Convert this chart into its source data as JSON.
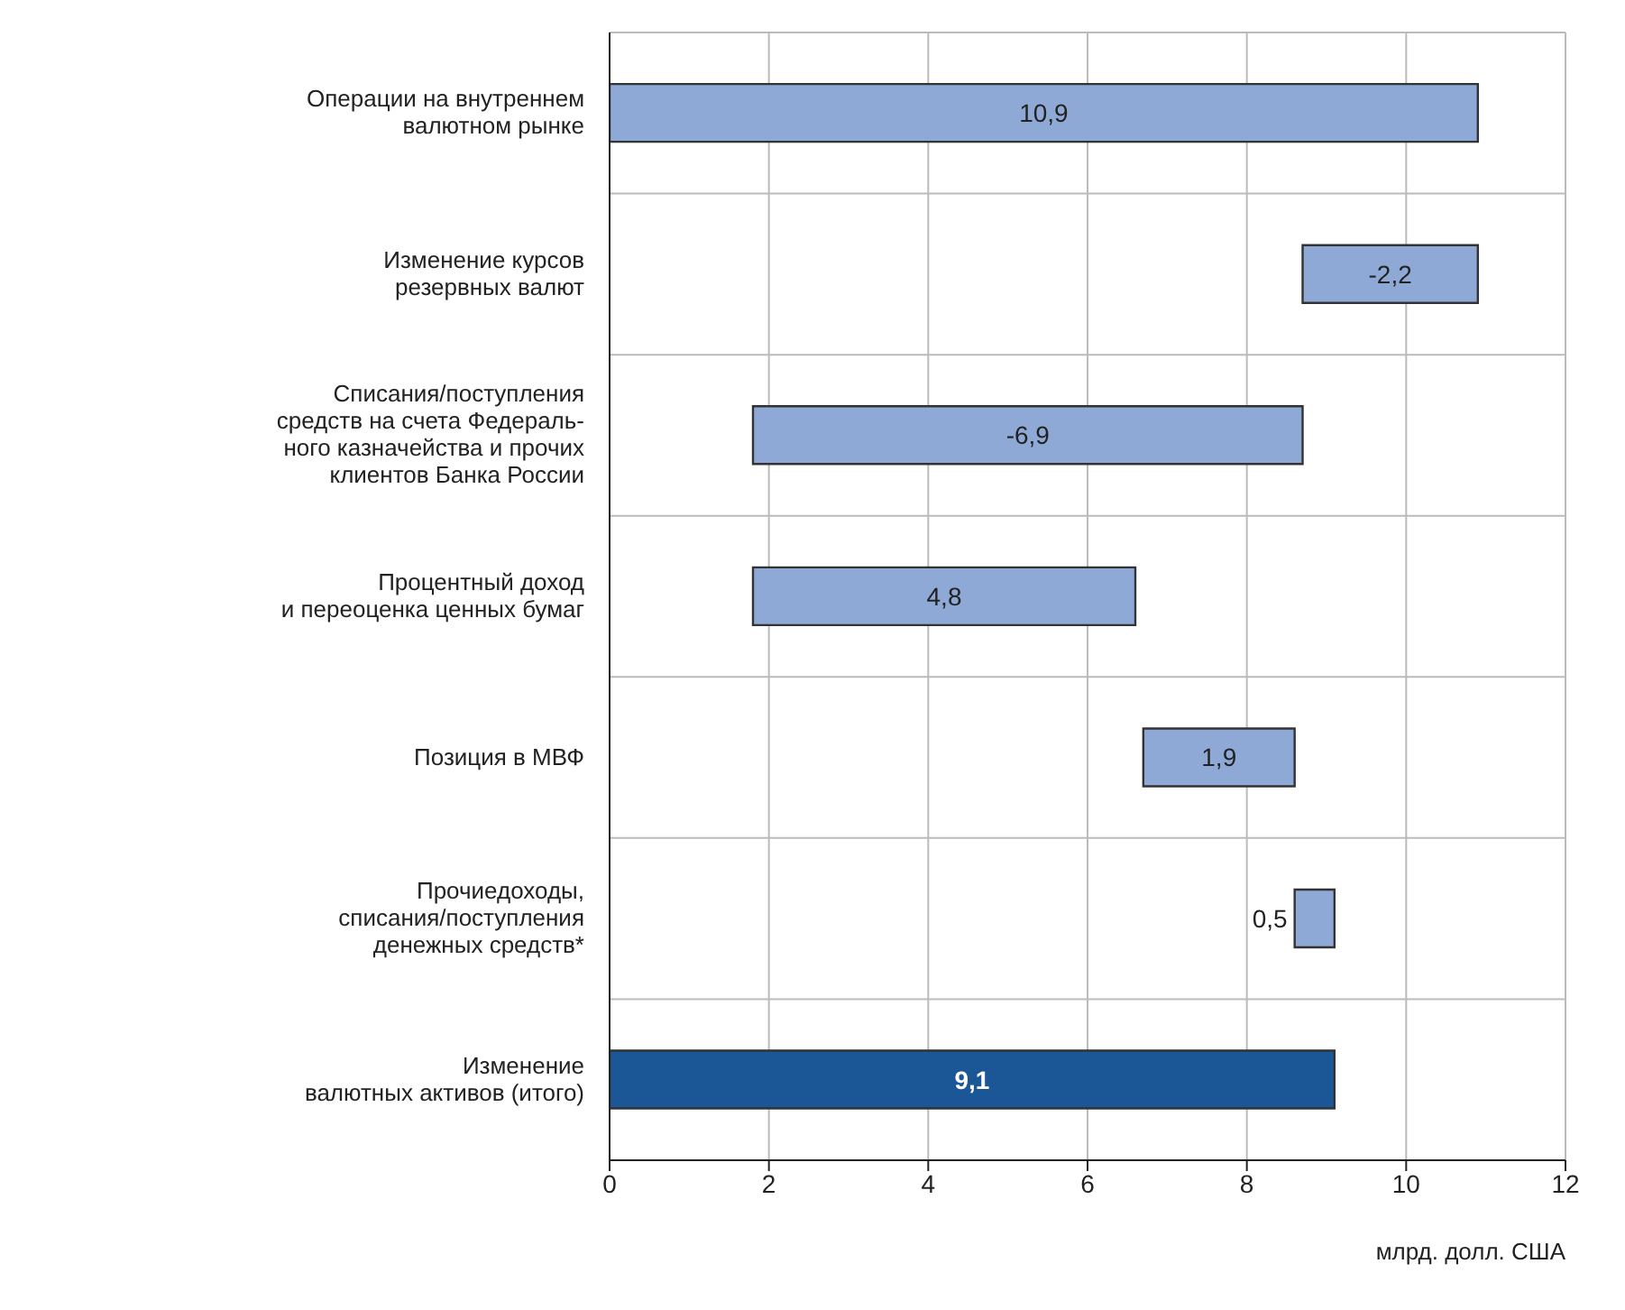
{
  "chart_data": {
    "type": "bar",
    "orientation": "horizontal",
    "xlabel": "млрд. долл. США",
    "categories": [
      "Операции на внутреннем\nвалютном рынке",
      "Изменение курсов\nрезервных валют",
      "Списания/поступления\nсредств на счета Федераль-\nного казначейства и прочих\nклиентов Банка России",
      "Процентный доход\nи переоценка ценных бумаг",
      "Позиция в МВФ",
      "Прочиедоходы,\nсписания/поступления\nденежных средств*",
      "Изменение\nвалютных активов (итого)"
    ],
    "values": [
      10.9,
      -2.2,
      -6.9,
      4.8,
      1.9,
      0.5,
      9.1
    ],
    "base": [
      0,
      10.9,
      8.7,
      1.8,
      6.7,
      8.6,
      0
    ],
    "value_labels": [
      "10,9",
      "-2,2",
      "-6,9",
      "4,8",
      "1,9",
      "0,5",
      "9,1"
    ],
    "colors": [
      "#8fa9d6",
      "#8fa9d6",
      "#8fa9d6",
      "#8fa9d6",
      "#8fa9d6",
      "#8fa9d6",
      "#1b5796"
    ],
    "xlim": [
      0,
      12
    ],
    "xticks": [
      0,
      2,
      4,
      6,
      8,
      10,
      12
    ],
    "grid": true
  }
}
